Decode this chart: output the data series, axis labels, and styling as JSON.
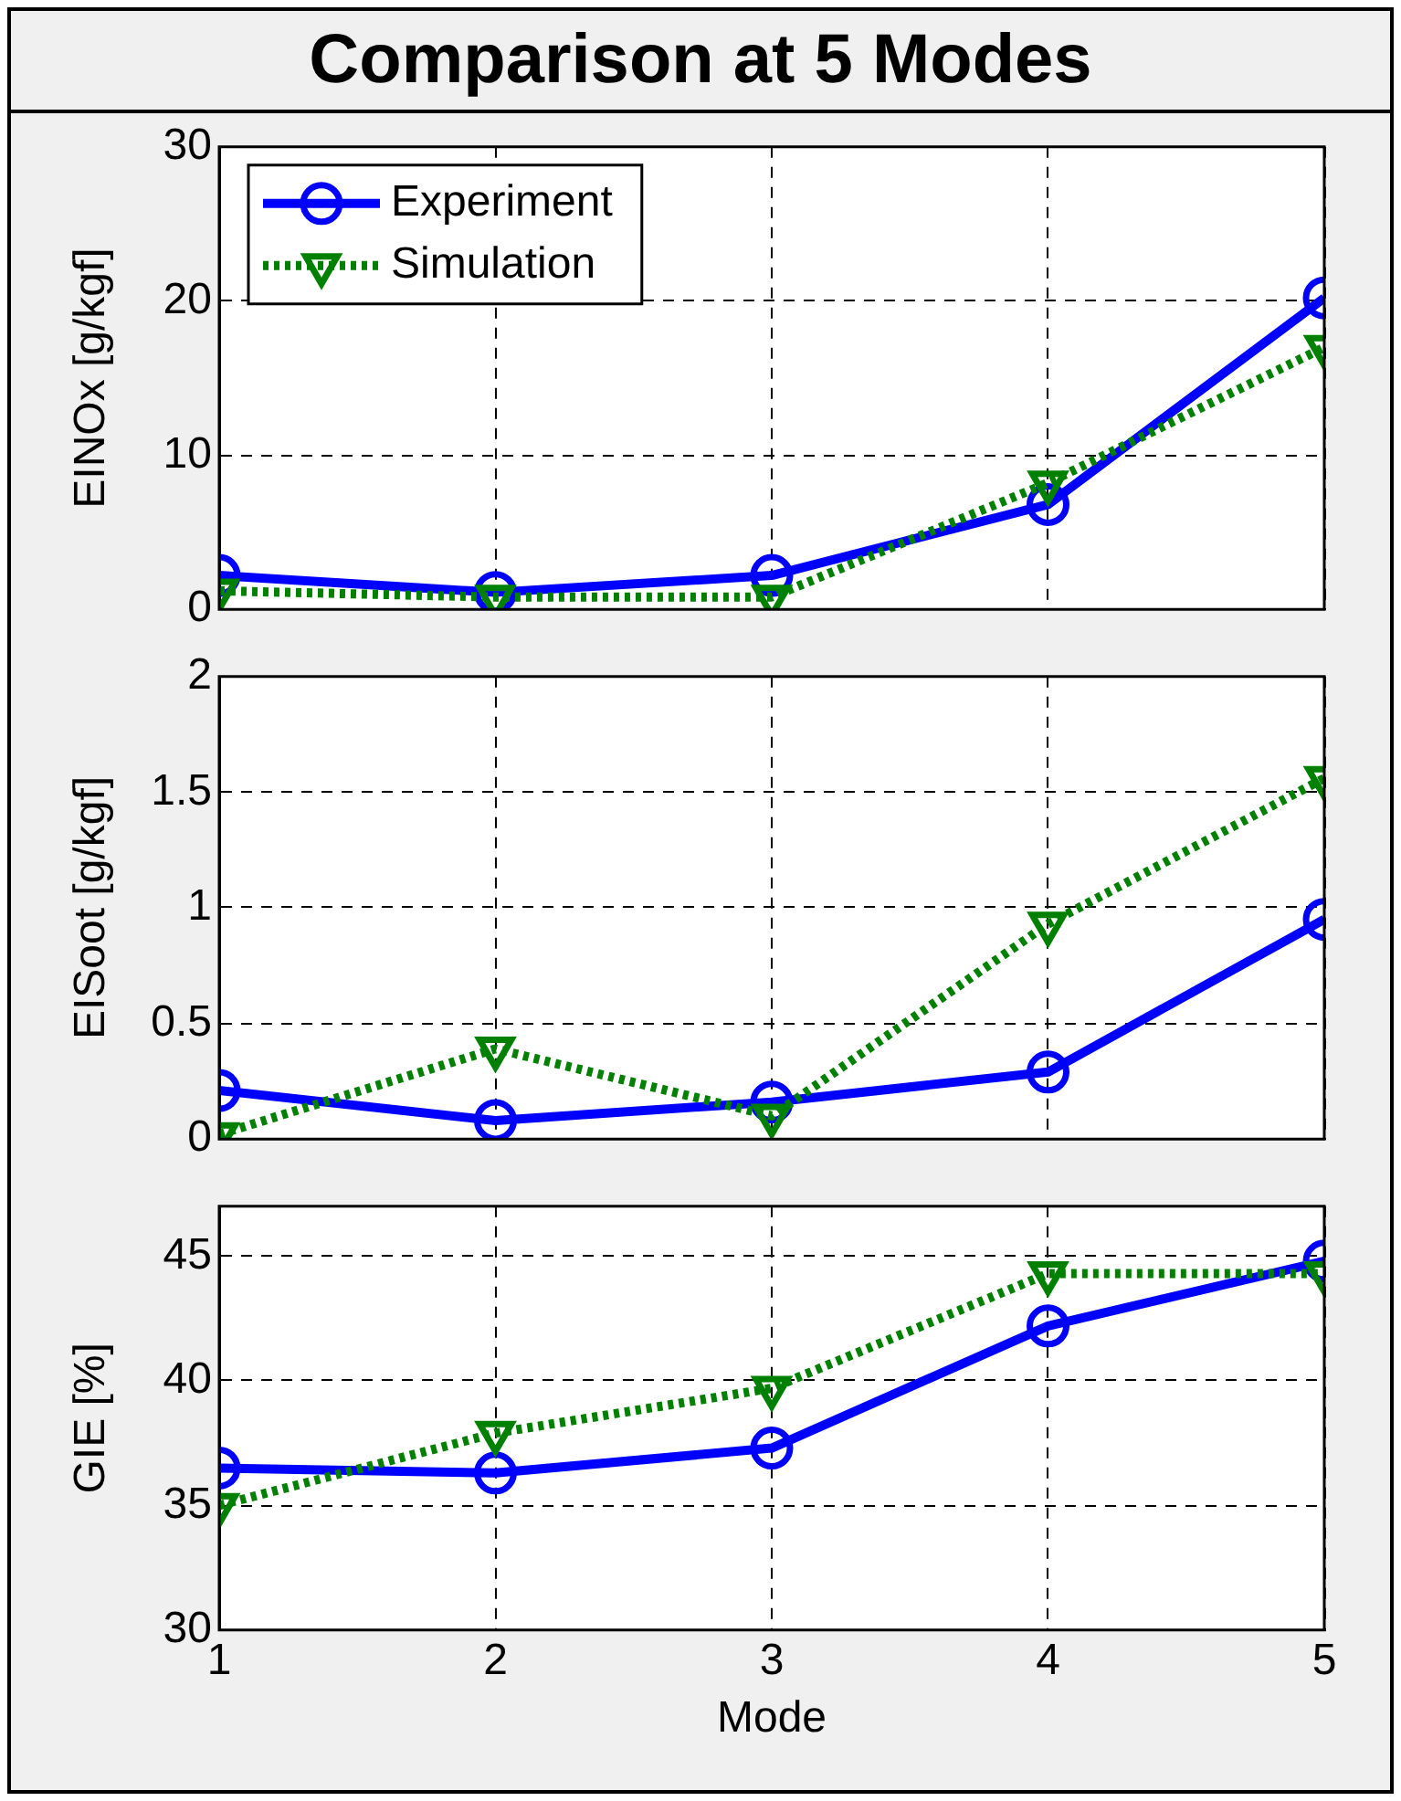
{
  "chart_data": [
    {
      "type": "line",
      "title": "Comparison at 5 Modes",
      "ylabel": "EINOx [g/kgf]",
      "x": [
        1,
        2,
        3,
        4,
        5
      ],
      "xlim": [
        1,
        5
      ],
      "xticks": [
        1,
        2,
        3,
        4,
        5
      ],
      "ylim": [
        0,
        30
      ],
      "yticks": [
        0,
        10,
        20,
        30
      ],
      "grid": true,
      "legend": "top left",
      "tick_labels": "y",
      "series": [
        {
          "name": "Experiment",
          "color": "#0000ff",
          "marker": "circle",
          "line_style": "solid",
          "values": [
            2.2,
            1.1,
            2.2,
            6.8,
            20.2
          ]
        },
        {
          "name": "Simulation",
          "color": "#008000",
          "marker": "triangle",
          "line_style": "dotted",
          "values": [
            1.2,
            0.8,
            0.8,
            8.2,
            17.0
          ]
        }
      ]
    },
    {
      "type": "line",
      "ylabel": "EISoot [g/kgf]",
      "x": [
        1,
        2,
        3,
        4,
        5
      ],
      "xlim": [
        1,
        5
      ],
      "xticks": [
        1,
        2,
        3,
        4,
        5
      ],
      "ylim": [
        0,
        2
      ],
      "yticks": [
        0,
        0.5,
        1,
        1.5,
        2
      ],
      "grid": true,
      "tick_labels": "y",
      "series": [
        {
          "color": "#0000ff",
          "marker": "circle",
          "line_style": "solid",
          "values": [
            0.21,
            0.08,
            0.16,
            0.29,
            0.95
          ]
        },
        {
          "color": "#008000",
          "marker": "triangle",
          "line_style": "dotted",
          "values": [
            0.02,
            0.39,
            0.1,
            0.93,
            1.56
          ]
        }
      ]
    },
    {
      "type": "line",
      "xlabel": "Mode",
      "ylabel": "GIE [%]",
      "x": [
        1,
        2,
        3,
        4,
        5
      ],
      "xlim": [
        1,
        5
      ],
      "xticks": [
        1,
        2,
        3,
        4,
        5
      ],
      "ylim": [
        30,
        47
      ],
      "yticks": [
        30,
        35,
        40,
        45
      ],
      "grid": true,
      "series": [
        {
          "color": "#0000ff",
          "marker": "circle",
          "line_style": "solid",
          "values": [
            36.5,
            36.3,
            37.3,
            42.2,
            44.8
          ]
        },
        {
          "color": "#008000",
          "marker": "triangle",
          "line_style": "dotted",
          "values": [
            35.0,
            37.9,
            39.7,
            44.3,
            44.3
          ]
        }
      ]
    }
  ]
}
